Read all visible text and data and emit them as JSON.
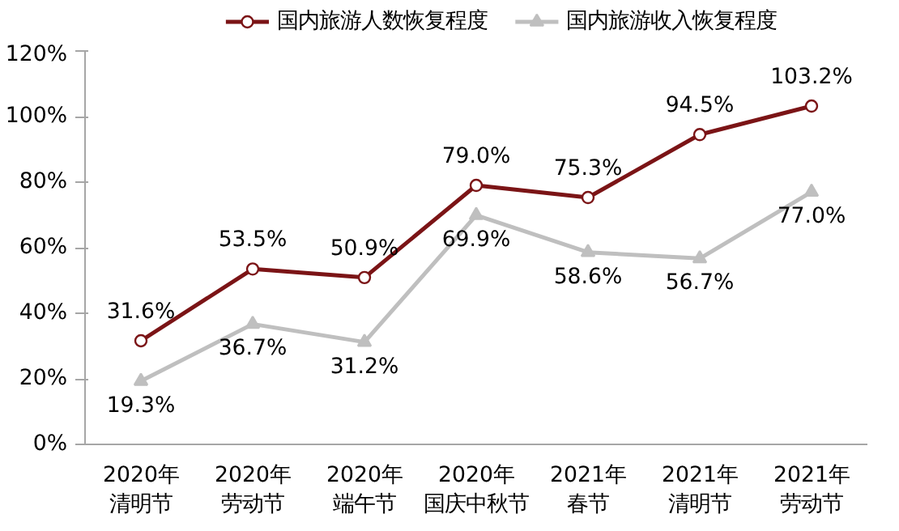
{
  "chart_data": {
    "type": "line",
    "categories": [
      "2020年清明节",
      "2020年劳动节",
      "2020年端午节",
      "2020年国庆中秋节",
      "2021年春节",
      "2021年清明节",
      "2021年劳动节"
    ],
    "series": [
      {
        "name": "国内旅游人数恢复程度",
        "color": "#7b1416",
        "marker": "circle",
        "values": [
          31.6,
          53.5,
          50.9,
          79.0,
          75.3,
          94.5,
          103.2
        ],
        "value_labels": [
          "31.6%",
          "53.5%",
          "50.9%",
          "79.0%",
          "75.3%",
          "94.5%",
          "103.2%"
        ]
      },
      {
        "name": "国内旅游收入恢复程度",
        "color": "#bfbfbf",
        "marker": "triangle",
        "values": [
          19.3,
          36.7,
          31.2,
          69.9,
          58.6,
          56.7,
          77.0
        ],
        "value_labels": [
          "19.3%",
          "36.7%",
          "31.2%",
          "69.9%",
          "58.6%",
          "56.7%",
          "77.0%"
        ]
      }
    ],
    "ylim": [
      0,
      120
    ],
    "yticks": [
      {
        "value": 0,
        "label": "0%"
      },
      {
        "value": 20,
        "label": "20%"
      },
      {
        "value": 40,
        "label": "40%"
      },
      {
        "value": 60,
        "label": "60%"
      },
      {
        "value": 80,
        "label": "80%"
      },
      {
        "value": 100,
        "label": "100%"
      },
      {
        "value": 120,
        "label": "120%"
      }
    ],
    "grid": false,
    "legend": "top",
    "line_style": "solid"
  }
}
